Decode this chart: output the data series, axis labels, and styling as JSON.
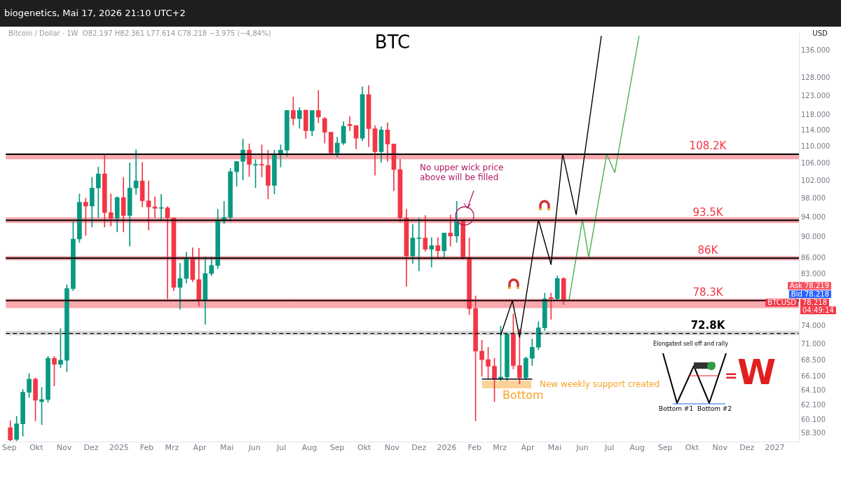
{
  "chart_data": {
    "type": "candlestick",
    "title": "BTC",
    "subtitle": "Bitcoin / Dollar · 1W  O82.197 H82.361 L77.614 C78.218 −3.975 (−4,84%)",
    "ylabel": "USD",
    "x": [
      "2024-09-02",
      "2024-09-09",
      "2024-09-16",
      "2024-09-23",
      "2024-09-30",
      "2024-10-07",
      "2024-10-14",
      "2024-10-21",
      "2024-10-28",
      "2024-11-04",
      "2024-11-11",
      "2024-11-18",
      "2024-11-25",
      "2024-12-02",
      "2024-12-09",
      "2024-12-16",
      "2024-12-23",
      "2024-12-30",
      "2025-01-06",
      "2025-01-13",
      "2025-01-20",
      "2025-01-27",
      "2025-02-03",
      "2025-02-10",
      "2025-02-17",
      "2025-02-24",
      "2025-03-03",
      "2025-03-10",
      "2025-03-17",
      "2025-03-24",
      "2025-03-31",
      "2025-04-07",
      "2025-04-14",
      "2025-04-21",
      "2025-04-28",
      "2025-05-05",
      "2025-05-12",
      "2025-05-19",
      "2025-05-26",
      "2025-06-02",
      "2025-06-09",
      "2025-06-16",
      "2025-06-23",
      "2025-06-30",
      "2025-07-07",
      "2025-07-14",
      "2025-07-21",
      "2025-07-28",
      "2025-08-04",
      "2025-08-11",
      "2025-08-18",
      "2025-08-25",
      "2025-09-01",
      "2025-09-08",
      "2025-09-15",
      "2025-09-22",
      "2025-09-29",
      "2025-10-06",
      "2025-10-13",
      "2025-10-20",
      "2025-10-27",
      "2025-11-03",
      "2025-11-10",
      "2025-11-17",
      "2025-11-24",
      "2025-12-01",
      "2025-12-08",
      "2025-12-15",
      "2025-12-22",
      "2025-12-29",
      "2026-01-05",
      "2026-01-12",
      "2026-01-19",
      "2026-01-26",
      "2026-02-02",
      "2026-02-09",
      "2026-02-16",
      "2026-02-23",
      "2026-03-02",
      "2026-03-09",
      "2026-03-16",
      "2026-03-23",
      "2026-03-30",
      "2026-04-06",
      "2026-04-13",
      "2026-04-20",
      "2026-04-27",
      "2026-05-04",
      "2026-05-11"
    ],
    "ohlc": [
      [
        59.1,
        60.0,
        57.4,
        57.5
      ],
      [
        57.6,
        60.6,
        57.4,
        59.6
      ],
      [
        59.6,
        64.3,
        58.0,
        63.9
      ],
      [
        63.9,
        66.6,
        63.2,
        65.8
      ],
      [
        65.8,
        66.0,
        60.0,
        62.8
      ],
      [
        62.6,
        64.6,
        59.5,
        62.9
      ],
      [
        62.9,
        69.2,
        62.5,
        68.9
      ],
      [
        68.9,
        69.2,
        64.8,
        68.0
      ],
      [
        68.0,
        73.6,
        67.5,
        68.6
      ],
      [
        68.6,
        81.1,
        66.9,
        80.4
      ],
      [
        80.4,
        93.2,
        80.0,
        89.7
      ],
      [
        89.7,
        99.1,
        89.0,
        97.3
      ],
      [
        97.3,
        98.2,
        90.4,
        96.5
      ],
      [
        96.5,
        102.8,
        92.1,
        100.4
      ],
      [
        100.4,
        105.2,
        94.0,
        103.6
      ],
      [
        103.6,
        108.3,
        92.1,
        95.1
      ],
      [
        95.1,
        99.1,
        92.3,
        93.9
      ],
      [
        93.9,
        98.5,
        91.1,
        98.3
      ],
      [
        98.3,
        102.8,
        91.1,
        94.5
      ],
      [
        94.5,
        106.2,
        88.3,
        100.4
      ],
      [
        100.4,
        109.3,
        99.0,
        102.0
      ],
      [
        102.0,
        106.3,
        96.3,
        97.6
      ],
      [
        97.6,
        102.0,
        91.5,
        96.3
      ],
      [
        96.3,
        98.5,
        94.0,
        96.0
      ],
      [
        96.0,
        99.0,
        93.6,
        96.1
      ],
      [
        96.1,
        96.4,
        78.6,
        94.0
      ],
      [
        94.0,
        94.0,
        80.0,
        80.6
      ],
      [
        80.6,
        85.0,
        76.8,
        82.2
      ],
      [
        82.2,
        87.1,
        81.4,
        85.8
      ],
      [
        85.8,
        88.0,
        81.6,
        82.0
      ],
      [
        82.0,
        87.9,
        77.3,
        78.4
      ],
      [
        78.4,
        86.2,
        74.3,
        83.1
      ],
      [
        83.1,
        86.2,
        82.7,
        84.6
      ],
      [
        84.6,
        95.8,
        84.0,
        93.3
      ],
      [
        93.3,
        97.5,
        92.8,
        94.1
      ],
      [
        94.1,
        104.9,
        93.3,
        104.1
      ],
      [
        104.1,
        106.5,
        100.8,
        106.5
      ],
      [
        106.5,
        111.9,
        102.2,
        109.2
      ],
      [
        109.2,
        110.7,
        103.0,
        105.8
      ],
      [
        105.6,
        106.9,
        100.5,
        105.8
      ],
      [
        105.8,
        110.5,
        102.9,
        105.6
      ],
      [
        105.6,
        109.2,
        98.0,
        101.0
      ],
      [
        101.0,
        109.2,
        99.1,
        108.2
      ],
      [
        108.2,
        110.5,
        105.2,
        109.2
      ],
      [
        109.2,
        119.2,
        107.7,
        119.2
      ],
      [
        119.2,
        122.8,
        115.4,
        117.1
      ],
      [
        117.1,
        120.0,
        114.6,
        119.2
      ],
      [
        119.3,
        119.3,
        112.0,
        114.0
      ],
      [
        114.0,
        119.2,
        112.7,
        119.2
      ],
      [
        119.2,
        124.6,
        116.0,
        117.5
      ],
      [
        117.1,
        117.4,
        110.9,
        113.6
      ],
      [
        113.6,
        113.6,
        108.0,
        108.5
      ],
      [
        108.5,
        112.4,
        107.5,
        110.9
      ],
      [
        110.9,
        116.3,
        110.5,
        115.1
      ],
      [
        115.6,
        117.6,
        114.0,
        115.3
      ],
      [
        115.3,
        115.3,
        109.5,
        112.1
      ],
      [
        112.1,
        125.6,
        111.5,
        123.5
      ],
      [
        123.5,
        126.0,
        110.0,
        114.5
      ],
      [
        114.5,
        115.3,
        103.3,
        108.8
      ],
      [
        108.8,
        115.0,
        106.3,
        114.2
      ],
      [
        114.2,
        116.0,
        106.5,
        110.7
      ],
      [
        110.7,
        110.7,
        99.8,
        104.6
      ],
      [
        104.6,
        107.0,
        93.1,
        94.0
      ],
      [
        94.0,
        95.8,
        80.8,
        86.4
      ],
      [
        86.4,
        92.6,
        85.0,
        89.9
      ],
      [
        89.8,
        94.0,
        83.6,
        89.9
      ],
      [
        89.9,
        94.5,
        87.3,
        87.7
      ],
      [
        87.7,
        90.0,
        84.3,
        88.4
      ],
      [
        88.4,
        90.0,
        86.0,
        87.4
      ],
      [
        87.4,
        90.9,
        86.1,
        90.9
      ],
      [
        90.9,
        94.6,
        88.3,
        90.3
      ],
      [
        90.3,
        97.5,
        89.0,
        93.3
      ],
      [
        93.3,
        93.3,
        85.8,
        86.1
      ],
      [
        86.1,
        89.9,
        75.9,
        76.9
      ],
      [
        76.9,
        79.1,
        60.0,
        70.0
      ],
      [
        70.0,
        71.7,
        66.2,
        68.7
      ],
      [
        68.7,
        70.6,
        65.9,
        67.7
      ],
      [
        67.7,
        68.9,
        62.6,
        65.9
      ],
      [
        65.9,
        74.0,
        65.6,
        66.1
      ],
      [
        66.1,
        72.7,
        65.6,
        72.7
      ],
      [
        72.7,
        76.0,
        67.3,
        67.8
      ],
      [
        67.8,
        73.5,
        65.1,
        66.0
      ],
      [
        66.0,
        69.1,
        65.7,
        68.9
      ],
      [
        68.9,
        71.9,
        67.8,
        70.6
      ],
      [
        70.6,
        74.7,
        70.2,
        73.7
      ],
      [
        73.7,
        79.6,
        73.3,
        78.6
      ],
      [
        78.8,
        79.6,
        75.1,
        78.6
      ],
      [
        78.6,
        82.7,
        78.3,
        82.2
      ],
      [
        82.197,
        82.361,
        77.614,
        78.218
      ]
    ],
    "colors": [
      "#f23645",
      "#089981",
      "#089981",
      "#089981",
      "#f23645",
      "#089981",
      "#089981",
      "#f23645",
      "#089981",
      "#089981",
      "#089981",
      "#089981",
      "#f23645",
      "#089981",
      "#089981",
      "#f23645",
      "#f23645",
      "#089981",
      "#f23645",
      "#089981",
      "#089981",
      "#f23645",
      "#f23645",
      "#f23645",
      "#089981",
      "#f23645",
      "#f23645",
      "#089981",
      "#089981",
      "#f23645",
      "#f23645",
      "#089981",
      "#089981",
      "#089981",
      "#089981",
      "#089981",
      "#089981",
      "#089981",
      "#f23645",
      "#089981",
      "#f23645",
      "#f23645",
      "#089981",
      "#089981",
      "#089981",
      "#f23645",
      "#089981",
      "#f23645",
      "#089981",
      "#f23645",
      "#f23645",
      "#f23645",
      "#089981",
      "#089981",
      "#f23645",
      "#f23645",
      "#089981",
      "#f23645",
      "#f23645",
      "#089981",
      "#f23645",
      "#f23645",
      "#f23645",
      "#f23645",
      "#089981",
      "#089981",
      "#f23645",
      "#089981",
      "#f23645",
      "#089981",
      "#f23645",
      "#089981",
      "#f23645",
      "#f23645",
      "#f23645",
      "#f23645",
      "#f23645",
      "#f23645",
      "#089981",
      "#089981",
      "#f23645",
      "#f23645",
      "#089981",
      "#089981",
      "#089981",
      "#089981",
      "#f23645",
      "#089981",
      "#f23645"
    ],
    "series": [
      {
        "type": "line",
        "color": "#000000",
        "x": [
          "2026-03-02",
          "2026-03-15",
          "2026-03-23",
          "2026-04-13",
          "2026-04-27",
          "2026-05-10",
          "2026-05-25",
          "2026-06-22"
        ],
        "values": [
          72.5,
          78.3,
          72.2,
          93.6,
          84.8,
          108.3,
          94.7,
          140.6
        ]
      },
      {
        "type": "line",
        "color": "#4caf50",
        "x": [
          "2026-05-17",
          "2026-06-01",
          "2026-06-08",
          "2026-06-28",
          "2026-07-07",
          "2026-08-03"
        ],
        "values": [
          78.3,
          93.6,
          86.2,
          108.2,
          103.9,
          140.6
        ]
      },
      {
        "type": "line",
        "color": "#000000",
        "x": [
          "2026-02-09",
          "2026-04-06"
        ],
        "values": [
          65.8,
          65.8
        ]
      }
    ],
    "ref_lines": [
      {
        "axis": "y",
        "value": 108.2,
        "label": "108.2K",
        "color": "#000000"
      },
      {
        "axis": "y",
        "value": 93.5,
        "label": "93.5K",
        "color": "#000000"
      },
      {
        "axis": "y",
        "value": 86,
        "label": "86K",
        "color": "#000000"
      },
      {
        "axis": "y",
        "value": 78.3,
        "label": "78.3K",
        "color": "#000000"
      },
      {
        "axis": "y",
        "value": 72.8,
        "label": "72.8K",
        "color": "#000000",
        "line_style": "dashed"
      },
      {
        "axis": "y",
        "value": 78.218,
        "color": "#f23645",
        "line_style": "dotted"
      }
    ],
    "bands": [
      {
        "axis": "y",
        "from": 107.0,
        "to": 108.2,
        "color": "#f7a9ae"
      },
      {
        "axis": "y",
        "from": 92.9,
        "to": 94.1,
        "color": "#f7a9ae"
      },
      {
        "axis": "y",
        "from": 85.6,
        "to": 86.4,
        "color": "#f7a9ae"
      },
      {
        "axis": "y",
        "from": 77.0,
        "to": 78.6,
        "color": "#f7a9ae"
      },
      {
        "axis": "y",
        "from": 72.5,
        "to": 73.2,
        "color": "#d9d9d9"
      }
    ],
    "log": true,
    "xlim": [
      "2024-08-28",
      "2027-01-28"
    ],
    "xticks": [
      {
        "value": "2024-09",
        "label": "Sep"
      },
      {
        "value": "2024-10",
        "label": "Okt"
      },
      {
        "value": "2024-11",
        "label": "Nov"
      },
      {
        "value": "2024-12",
        "label": "Dez"
      },
      {
        "value": "2025-01",
        "label": "2025"
      },
      {
        "value": "2025-02",
        "label": "Feb"
      },
      {
        "value": "2025-03",
        "label": "Mrz"
      },
      {
        "value": "2025-04",
        "label": "Apr"
      },
      {
        "value": "2025-05",
        "label": "Mai"
      },
      {
        "value": "2025-06",
        "label": "Jun"
      },
      {
        "value": "2025-07",
        "label": "Jul"
      },
      {
        "value": "2025-08",
        "label": "Aug"
      },
      {
        "value": "2025-09",
        "label": "Sep"
      },
      {
        "value": "2025-10",
        "label": "Okt"
      },
      {
        "value": "2025-11",
        "label": "Nov"
      },
      {
        "value": "2025-12",
        "label": "Dez"
      },
      {
        "value": "2026-01",
        "label": "2026"
      },
      {
        "value": "2026-02",
        "label": "Feb"
      },
      {
        "value": "2026-03",
        "label": "Mrz"
      },
      {
        "value": "2026-04",
        "label": "Apr"
      },
      {
        "value": "2026-05",
        "label": "Mai"
      },
      {
        "value": "2026-06",
        "label": "Jun"
      },
      {
        "value": "2026-07",
        "label": "Jul"
      },
      {
        "value": "2026-08",
        "label": "Aug"
      },
      {
        "value": "2026-09",
        "label": "Sep"
      },
      {
        "value": "2026-10",
        "label": "Okt"
      },
      {
        "value": "2026-11",
        "label": "Nov"
      },
      {
        "value": "2026-12",
        "label": "Dez"
      },
      {
        "value": "2027-01",
        "label": "2027"
      }
    ],
    "ylim": [
      57.3,
      141.5
    ],
    "yticks": [
      {
        "value": 58.3,
        "label": "58.300"
      },
      {
        "value": 60.1,
        "label": "60.100"
      },
      {
        "value": 62.1,
        "label": "62.100"
      },
      {
        "value": 64.1,
        "label": "64.100"
      },
      {
        "value": 66.1,
        "label": "66.100"
      },
      {
        "value": 68.5,
        "label": "68.500"
      },
      {
        "value": 71,
        "label": "71.000"
      },
      {
        "value": 74,
        "label": "74.000"
      },
      {
        "value": 83,
        "label": "83.000"
      },
      {
        "value": 86,
        "label": "86.000"
      },
      {
        "value": 90,
        "label": "90.000"
      },
      {
        "value": 94,
        "label": "94.000"
      },
      {
        "value": 98,
        "label": "98.000"
      },
      {
        "value": 102,
        "label": "102.000"
      },
      {
        "value": 106,
        "label": "106.000"
      },
      {
        "value": 110,
        "label": "110.000"
      },
      {
        "value": 114,
        "label": "114.000"
      },
      {
        "value": 118,
        "label": "118.000"
      },
      {
        "value": 123,
        "label": "123.000"
      },
      {
        "value": 128,
        "label": "128.000"
      },
      {
        "value": 136,
        "label": "136.000"
      }
    ],
    "annotations": [
      "biogenetics, Mai 17, 2026 21:10 UTC+2",
      "No upper wick price above will be filled",
      "New weekly support created",
      "Bottom",
      "Ask 78.219",
      "Bid 78.218",
      "BTCUSD",
      "78.218",
      "04:49:14",
      "Elongated sell off and rally",
      "Bottom #1",
      "Bottom #2",
      "=",
      "W"
    ]
  }
}
